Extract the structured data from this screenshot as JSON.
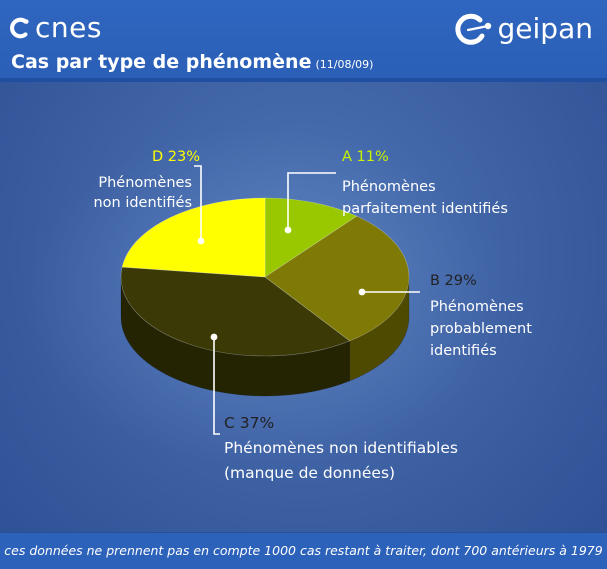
{
  "header": {
    "logo_left": "cnes",
    "logo_right": "geipan",
    "title": "Cas par type de phénomène",
    "date": "(11/08/09)"
  },
  "chart_data": {
    "type": "pie",
    "slices": [
      {
        "letter": "A",
        "percent": 11,
        "pct_label": "11%",
        "desc": [
          "Phénomènes",
          "parfaitement identifiés"
        ],
        "color": "#99c800",
        "side": "#6f9200",
        "label_color": "#c8f200"
      },
      {
        "letter": "B",
        "percent": 29,
        "pct_label": "29%",
        "desc": [
          "Phénomènes",
          "probablement",
          "identifiés"
        ],
        "color": "#7f7a06",
        "side": "#4e4a02",
        "label_color": "#222222"
      },
      {
        "letter": "C",
        "percent": 37,
        "pct_label": "37%",
        "desc": [
          "Phénomènes non identifiables",
          "(manque de données)"
        ],
        "color": "#3b3a06",
        "side": "#242302",
        "label_color": "#222222"
      },
      {
        "letter": "D",
        "percent": 23,
        "pct_label": "23%",
        "desc": [
          "Phénomènes",
          "non identifiés"
        ],
        "color": "#ffff00",
        "side": "#c9c900",
        "label_color": "#ffff00"
      }
    ]
  },
  "footer": {
    "note": "ces données ne prennent pas en compte 1000 cas restant à traiter, dont 700 antérieurs à 1979"
  }
}
